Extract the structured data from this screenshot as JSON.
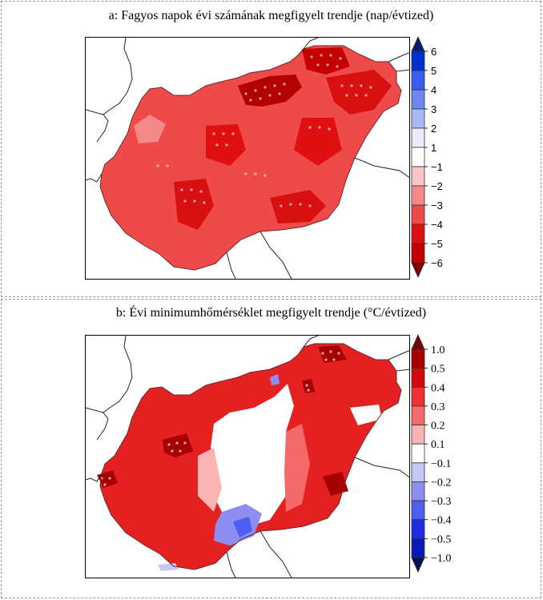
{
  "panel_a": {
    "title": "a: Fagyos napok évi számának megfigyelt trendje (nap/évtized)",
    "colorbar": {
      "ticks": [
        "6",
        "5",
        "4",
        "3",
        "2",
        "1",
        "−1",
        "−2",
        "−3",
        "−4",
        "−5",
        "−6"
      ],
      "colors": [
        "#0a1e6e",
        "#0030d0",
        "#3a5cf0",
        "#6c86f2",
        "#a9b8f7",
        "#e8ecfb",
        "#ffffff",
        "#fcc4c4",
        "#f58888",
        "#ee4a4a",
        "#e01010",
        "#c40000",
        "#820000"
      ]
    }
  },
  "panel_b": {
    "title": "b: Évi minimumhőmérséklet megfigyelt trendje (°C/évtized)",
    "colorbar": {
      "ticks": [
        "1.0",
        "0.5",
        "0.4",
        "0.3",
        "0.2",
        "0.1",
        "−0.1",
        "−0.2",
        "−0.3",
        "−0.4",
        "−0.5",
        "−1.0"
      ],
      "colors": [
        "#6e0808",
        "#a80000",
        "#d40a0a",
        "#ee3030",
        "#f46a6a",
        "#fab4b4",
        "#ffffff",
        "#c8c8f6",
        "#8e8ef2",
        "#4e5ef0",
        "#1a2ee0",
        "#0a18b8",
        "#08104e"
      ]
    }
  }
}
